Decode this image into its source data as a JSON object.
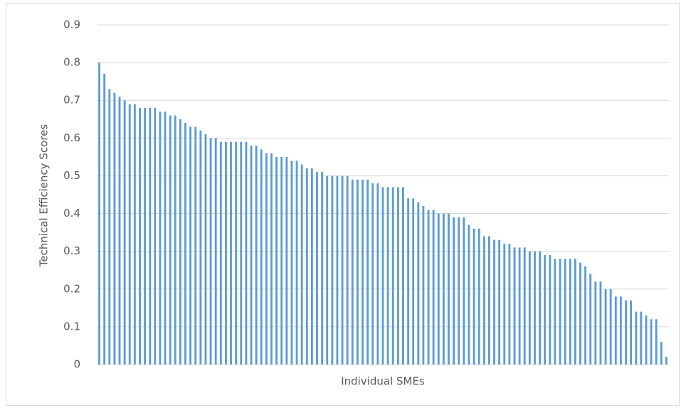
{
  "chart_data": {
    "type": "bar",
    "x_label": "Individual SMEs",
    "y_label": "Technical Efficiency Scores",
    "values": [
      0.8,
      0.77,
      0.73,
      0.72,
      0.71,
      0.7,
      0.69,
      0.69,
      0.68,
      0.68,
      0.68,
      0.68,
      0.67,
      0.67,
      0.66,
      0.66,
      0.65,
      0.64,
      0.63,
      0.63,
      0.62,
      0.61,
      0.6,
      0.6,
      0.59,
      0.59,
      0.59,
      0.59,
      0.59,
      0.59,
      0.58,
      0.58,
      0.57,
      0.56,
      0.56,
      0.55,
      0.55,
      0.55,
      0.54,
      0.54,
      0.53,
      0.52,
      0.52,
      0.51,
      0.51,
      0.5,
      0.5,
      0.5,
      0.5,
      0.5,
      0.49,
      0.49,
      0.49,
      0.49,
      0.48,
      0.48,
      0.47,
      0.47,
      0.47,
      0.47,
      0.47,
      0.44,
      0.44,
      0.43,
      0.42,
      0.41,
      0.41,
      0.4,
      0.4,
      0.4,
      0.39,
      0.39,
      0.39,
      0.37,
      0.36,
      0.36,
      0.34,
      0.34,
      0.33,
      0.33,
      0.32,
      0.32,
      0.31,
      0.31,
      0.31,
      0.3,
      0.3,
      0.3,
      0.29,
      0.29,
      0.28,
      0.28,
      0.28,
      0.28,
      0.28,
      0.27,
      0.26,
      0.24,
      0.22,
      0.22,
      0.2,
      0.2,
      0.18,
      0.18,
      0.17,
      0.17,
      0.14,
      0.14,
      0.13,
      0.12,
      0.12,
      0.06,
      0.02
    ],
    "color": "#5b9bd5",
    "ylim": [
      0,
      0.9
    ],
    "yticks": [
      0,
      0.1,
      0.2,
      0.3,
      0.4,
      0.5,
      0.6,
      0.7,
      0.8,
      0.9
    ],
    "grid": true
  }
}
